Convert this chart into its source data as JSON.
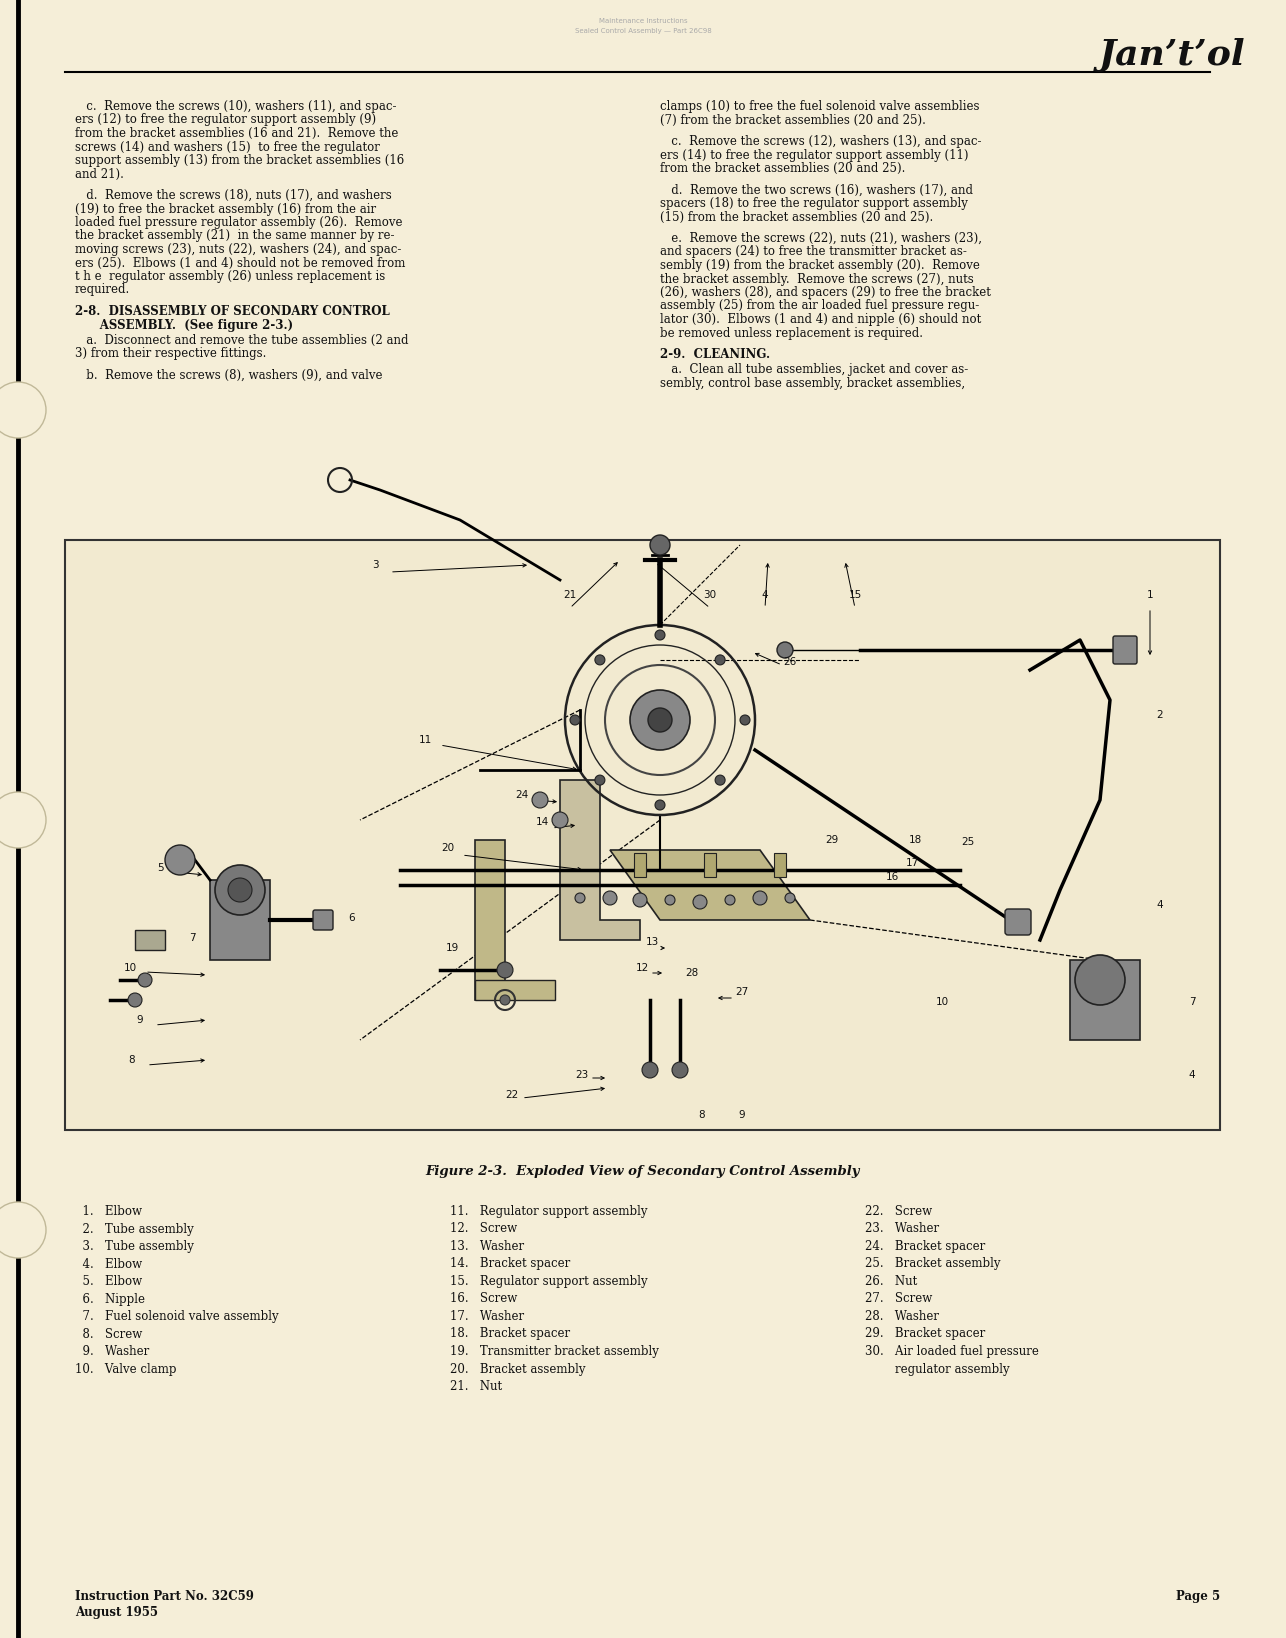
{
  "background_color": "#f5eed8",
  "text_color": "#111111",
  "logo_text": "Jan’t’ol",
  "body_font_size": 8.5,
  "legend_font_size": 8.5,
  "caption_font_size": 9.5,
  "footer_font_size": 8.5,
  "logo_font_size": 26,
  "left_col_paragraphs": [
    "   c.  Remove the screws (10), washers (11), and spac-\ners (12) to free the regulator support assembly (9)\nfrom the bracket assemblies (16 and 21).  Remove the\nscrews (14) and washers (15)  to free the regulator\nsupport assembly (13) from the bracket assemblies (16\nand 21).",
    "   d.  Remove the screws (18), nuts (17), and washers\n(19) to free the bracket assembly (16) from the air\nloaded fuel pressure regulator assembly (26).  Remove\nthe bracket assembly (21)  in the same manner by re-\nmoving screws (23), nuts (22), washers (24), and spac-\ners (25).  Elbows (1 and 4) should not be removed from\nt h e  regulator assembly (26) unless replacement is\nrequired.",
    "2-8.  DISASSEMBLY OF SECONDARY CONTROL\n      ASSEMBLY.  (See figure 2-3.)",
    "   a.  Disconnect and remove the tube assemblies (2 and\n3) from their respective fittings.",
    "   b.  Remove the screws (8), washers (9), and valve"
  ],
  "right_col_paragraphs": [
    "clamps (10) to free the fuel solenoid valve assemblies\n(7) from the bracket assemblies (20 and 25).",
    "   c.  Remove the screws (12), washers (13), and spac-\ners (14) to free the regulator support assembly (11)\nfrom the bracket assemblies (20 and 25).",
    "   d.  Remove the two screws (16), washers (17), and\nspacers (18) to free the regulator support assembly\n(15) from the bracket assemblies (20 and 25).",
    "   e.  Remove the screws (22), nuts (21), washers (23),\nand spacers (24) to free the transmitter bracket as-\nsembly (19) from the bracket assembly (20).  Remove\nthe bracket assembly.  Remove the screws (27), nuts\n(26), washers (28), and spacers (29) to free the bracket\nassembly (25) from the air loaded fuel pressure regu-\nlator (30).  Elbows (1 and 4) and nipple (6) should not\nbe removed unless replacement is required.",
    "2-9.  CLEANING.",
    "   a.  Clean all tube assemblies, jacket and cover as-\nsembly, control base assembly, bracket assemblies,"
  ],
  "figure_caption": "Figure 2-3.  Exploded View of Secondary Control Assembly",
  "legend_col1": [
    "  1.   Elbow",
    "  2.   Tube assembly",
    "  3.   Tube assembly",
    "  4.   Elbow",
    "  5.   Elbow",
    "  6.   Nipple",
    "  7.   Fuel solenoid valve assembly",
    "  8.   Screw",
    "  9.   Washer",
    "10.   Valve clamp"
  ],
  "legend_col2": [
    "11.   Regulator support assembly",
    "12.   Screw",
    "13.   Washer",
    "14.   Bracket spacer",
    "15.   Regulator support assembly",
    "16.   Screw",
    "17.   Washer",
    "18.   Bracket spacer",
    "19.   Transmitter bracket assembly",
    "20.   Bracket assembly",
    "21.   Nut"
  ],
  "legend_col3": [
    "22.   Screw",
    "23.   Washer",
    "24.   Bracket spacer",
    "25.   Bracket assembly",
    "26.   Nut",
    "27.   Screw",
    "28.   Washer",
    "29.   Bracket spacer",
    "30.   Air loaded fuel pressure",
    "        regulator assembly"
  ],
  "footer_left1": "Instruction Part No. 32C59",
  "footer_left2": "August 1955",
  "footer_right": "Page 5"
}
